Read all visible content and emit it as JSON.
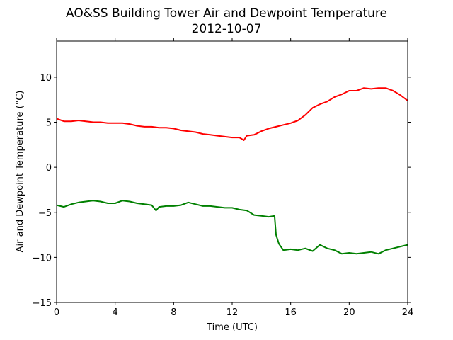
{
  "chart_data": {
    "type": "line",
    "title": "AO&SS Building Tower Air and Dewpoint Temperature",
    "subtitle": "2012-10-07",
    "xlabel": "Time (UTC)",
    "ylabel": "Air and Dewpoint Temperature (°C)",
    "xlim": [
      0,
      24
    ],
    "ylim": [
      -15,
      14
    ],
    "x_ticks": [
      0,
      4,
      8,
      12,
      16,
      20,
      24
    ],
    "x_tick_labels": [
      "0",
      "4",
      "8",
      "12",
      "16",
      "20",
      "24"
    ],
    "y_ticks": [
      -15,
      -10,
      -5,
      0,
      5,
      10
    ],
    "y_tick_labels": [
      "−15",
      "−10",
      "−5",
      "0",
      "5",
      "10"
    ],
    "grid": false,
    "legend": "none",
    "series": [
      {
        "color": "#ff0000",
        "x": [
          0,
          0.5,
          1,
          1.5,
          2,
          2.5,
          3,
          3.5,
          4,
          4.5,
          5,
          5.5,
          6,
          6.5,
          7,
          7.5,
          8,
          8.5,
          9,
          9.5,
          10,
          10.5,
          11,
          11.5,
          12,
          12.5,
          12.8,
          13,
          13.5,
          14,
          14.5,
          15,
          15.5,
          16,
          16.5,
          17,
          17.5,
          18,
          18.5,
          19,
          19.5,
          20,
          20.5,
          21,
          21.5,
          22,
          22.5,
          23,
          23.5,
          24
        ],
        "y": [
          5.4,
          5.1,
          5.1,
          5.2,
          5.1,
          5.0,
          5.0,
          4.9,
          4.9,
          4.9,
          4.8,
          4.6,
          4.5,
          4.5,
          4.4,
          4.4,
          4.3,
          4.1,
          4.0,
          3.9,
          3.7,
          3.6,
          3.5,
          3.4,
          3.3,
          3.3,
          3.0,
          3.5,
          3.6,
          4.0,
          4.3,
          4.5,
          4.7,
          4.9,
          5.2,
          5.8,
          6.6,
          7.0,
          7.3,
          7.8,
          8.1,
          8.5,
          8.5,
          8.8,
          8.7,
          8.8,
          8.8,
          8.5,
          8.0,
          7.4
        ]
      },
      {
        "color": "#008000",
        "x": [
          0,
          0.5,
          1,
          1.5,
          2,
          2.5,
          3,
          3.5,
          4,
          4.5,
          5,
          5.5,
          6,
          6.5,
          6.8,
          7,
          7.5,
          8,
          8.5,
          9,
          9.5,
          10,
          10.5,
          11,
          11.5,
          12,
          12.5,
          13,
          13.5,
          14,
          14.5,
          14.9,
          15,
          15.2,
          15.5,
          16,
          16.5,
          17,
          17.5,
          18,
          18.5,
          19,
          19.5,
          20,
          20.5,
          21,
          21.5,
          22,
          22.5,
          23,
          23.5,
          24
        ],
        "y": [
          -4.2,
          -4.4,
          -4.1,
          -3.9,
          -3.8,
          -3.7,
          -3.8,
          -4.0,
          -4.0,
          -3.7,
          -3.8,
          -4.0,
          -4.1,
          -4.2,
          -4.8,
          -4.4,
          -4.3,
          -4.3,
          -4.2,
          -3.9,
          -4.1,
          -4.3,
          -4.3,
          -4.4,
          -4.5,
          -4.5,
          -4.7,
          -4.8,
          -5.3,
          -5.4,
          -5.5,
          -5.4,
          -7.5,
          -8.5,
          -9.2,
          -9.1,
          -9.2,
          -9.0,
          -9.3,
          -8.6,
          -9.0,
          -9.2,
          -9.6,
          -9.5,
          -9.6,
          -9.5,
          -9.4,
          -9.6,
          -9.2,
          -9.0,
          -8.8,
          -8.6
        ]
      }
    ]
  }
}
